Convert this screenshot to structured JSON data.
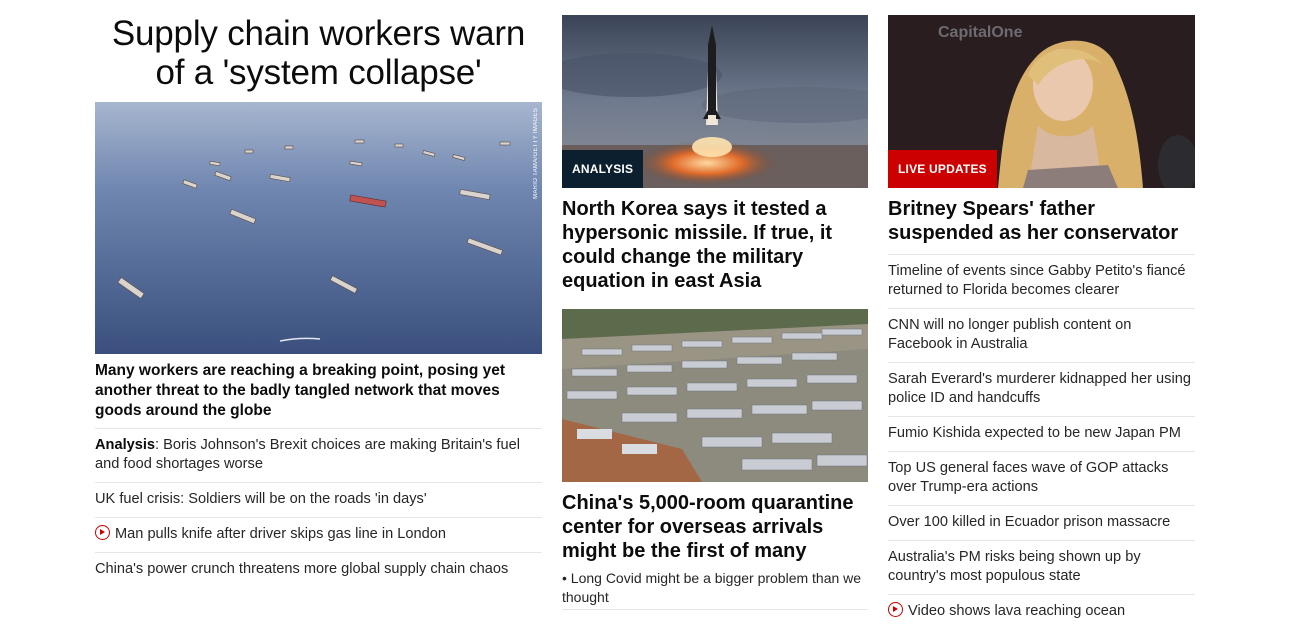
{
  "left": {
    "hero_title": "Supply chain workers warn of a 'system collapse'",
    "photo_credit": "MARIO TAMA/GETTY IMAGES",
    "hero_desc": "Many workers are reaching a breaking point, posing yet another threat to the badly tangled network that moves goods around the globe",
    "items": [
      {
        "prefix": "Analysis",
        "text": ": Boris Johnson's Brexit choices are making Britain's fuel and food shortages worse"
      },
      {
        "text": "UK fuel crisis: Soldiers will be on the roads 'in days'"
      },
      {
        "text": "Man pulls knife after driver skips gas line in London",
        "icon": "play-icon"
      },
      {
        "text": "China's power crunch threatens more global supply chain chaos"
      }
    ]
  },
  "middle": {
    "card1": {
      "tag": "ANALYSIS",
      "headline": "North Korea says it tested a hypersonic missile. If true, it could change the military equation in east Asia"
    },
    "card2": {
      "headline": "China's 5,000-room quarantine center for overseas arrivals might be the first of many",
      "sub_link": "• Long Covid might be a bigger problem than we thought"
    }
  },
  "right": {
    "card": {
      "tag": "LIVE UPDATES",
      "headline": "Britney Spears' father suspended as her conservator"
    },
    "items": [
      {
        "text": "Timeline of events since Gabby Petito's fiancé returned to Florida becomes clearer"
      },
      {
        "text": "CNN will no longer publish content on Facebook in Australia"
      },
      {
        "text": "Sarah Everard's murderer kidnapped her using police ID and handcuffs"
      },
      {
        "text": "Fumio Kishida expected to be new Japan PM"
      },
      {
        "text": "Top US general faces wave of GOP attacks over Trump-era actions"
      },
      {
        "text": "Over 100 killed in Ecuador prison massacre"
      },
      {
        "text": "Australia's PM risks being shown up by country's most populous state"
      },
      {
        "text": "Video shows lava reaching ocean",
        "icon": "play-icon"
      }
    ]
  },
  "colors": {
    "accent_red": "#cc0000",
    "analysis_tag": "#0c1f2e",
    "divider": "#e6e6e6"
  }
}
